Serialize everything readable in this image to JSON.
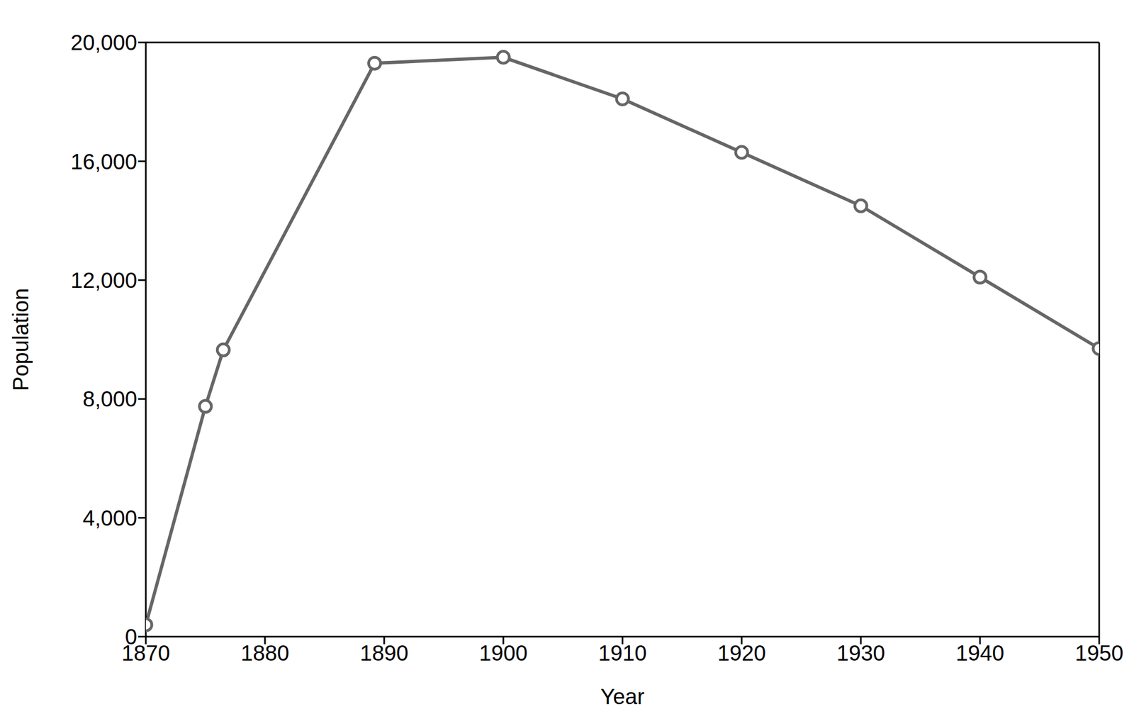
{
  "chart_data": {
    "type": "line",
    "x_label": "Year",
    "y_label": "Population",
    "x": [
      1870,
      1875,
      1876.5,
      1889.2,
      1900,
      1910,
      1920,
      1930,
      1940,
      1950
    ],
    "values": [
      400,
      7750,
      9650,
      19300,
      19500,
      18100,
      16300,
      14500,
      12100,
      9700
    ],
    "color": "#666666",
    "marker": "circle",
    "line_style": "solid",
    "grid": false,
    "xlim": [
      1870,
      1950
    ],
    "xticks": [
      1870,
      1880,
      1890,
      1900,
      1910,
      1920,
      1930,
      1940,
      1950
    ],
    "ylim": [
      0,
      20000
    ],
    "yticks": [
      0,
      {
        "value": 4000,
        "label": "4,000"
      },
      {
        "value": 8000,
        "label": "8,000"
      },
      {
        "value": 12000,
        "label": "12,000"
      },
      {
        "value": 16000,
        "label": "16,000"
      },
      {
        "value": 20000,
        "label": "20,000"
      }
    ]
  }
}
